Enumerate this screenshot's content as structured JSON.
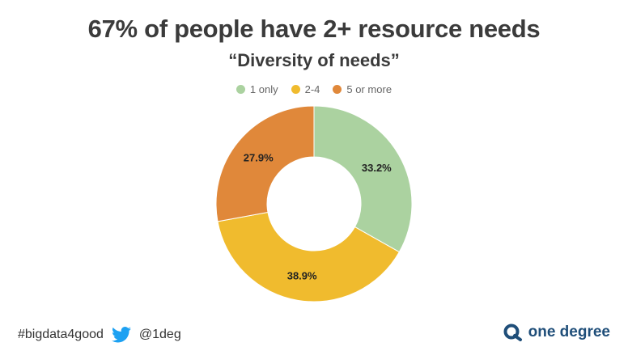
{
  "header": {
    "title": "67% of people have 2+ resource needs",
    "subtitle": "“Diversity of needs”"
  },
  "footer": {
    "hashtag": "#bigdata4good",
    "handle": "@1deg",
    "brand": "one degree",
    "icons": {
      "social": "twitter-bird-icon",
      "brand": "one-degree-logo-icon"
    }
  },
  "chart_data": {
    "type": "pie",
    "donut": true,
    "categories": [
      "1 only",
      "2-4",
      "5 or more"
    ],
    "values": [
      33.2,
      38.9,
      27.9
    ],
    "labels": [
      "33.2%",
      "38.9%",
      "27.9%"
    ],
    "colors": [
      "#abd2a0",
      "#f0bb2e",
      "#e0883a"
    ],
    "legend": "top-center"
  }
}
